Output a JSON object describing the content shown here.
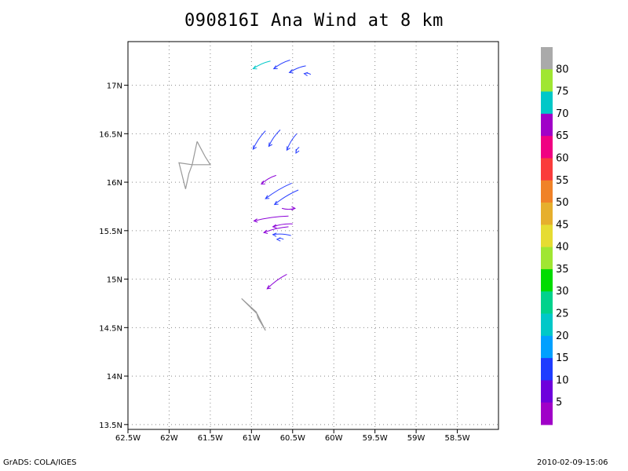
{
  "chart_data": {
    "type": "vector",
    "title": "090816I Ana Wind at 8 km",
    "xlim": [
      -62.5,
      -58
    ],
    "ylim": [
      13.45,
      17.45
    ],
    "x_ticks": [
      {
        "value": -62.5,
        "label": "62.5W"
      },
      {
        "value": -62.0,
        "label": "62W"
      },
      {
        "value": -61.5,
        "label": "61.5W"
      },
      {
        "value": -61.0,
        "label": "61W"
      },
      {
        "value": -60.5,
        "label": "60.5W"
      },
      {
        "value": -60.0,
        "label": "60W"
      },
      {
        "value": -59.5,
        "label": "59.5W"
      },
      {
        "value": -59.0,
        "label": "59W"
      },
      {
        "value": -58.5,
        "label": "58.5W"
      }
    ],
    "y_ticks": [
      {
        "value": 13.5,
        "label": "13.5N"
      },
      {
        "value": 14.0,
        "label": "14N"
      },
      {
        "value": 14.5,
        "label": "14.5N"
      },
      {
        "value": 15.0,
        "label": "15N"
      },
      {
        "value": 15.5,
        "label": "15.5N"
      },
      {
        "value": 16.0,
        "label": "16N"
      },
      {
        "value": 16.5,
        "label": "16.5N"
      },
      {
        "value": 17.0,
        "label": "17N"
      }
    ],
    "grid": true,
    "vectors": [
      {
        "lon": -60.77,
        "lat": 17.25,
        "lon2": -60.98,
        "lat2": 17.17,
        "color": "#00c8c8"
      },
      {
        "lon": -60.53,
        "lat": 17.26,
        "lon2": -60.73,
        "lat2": 17.17,
        "color": "#2a40ff"
      },
      {
        "lon": -60.34,
        "lat": 17.2,
        "lon2": -60.54,
        "lat2": 17.13,
        "color": "#2a40ff"
      },
      {
        "lon": -60.28,
        "lat": 17.11,
        "lon2": -60.36,
        "lat2": 17.12,
        "color": "#2a40ff"
      },
      {
        "lon": -60.83,
        "lat": 16.53,
        "lon2": -60.98,
        "lat2": 16.34,
        "color": "#2a40ff"
      },
      {
        "lon": -60.65,
        "lat": 16.54,
        "lon2": -60.79,
        "lat2": 16.37,
        "color": "#2a40ff"
      },
      {
        "lon": -60.45,
        "lat": 16.5,
        "lon2": -60.57,
        "lat2": 16.33,
        "color": "#2a40ff"
      },
      {
        "lon": -60.42,
        "lat": 16.36,
        "lon2": -60.46,
        "lat2": 16.3,
        "color": "#2a40ff"
      },
      {
        "lon": -60.7,
        "lat": 16.07,
        "lon2": -60.88,
        "lat2": 15.98,
        "color": "#8b00d8"
      },
      {
        "lon": -60.51,
        "lat": 15.99,
        "lon2": -60.83,
        "lat2": 15.83,
        "color": "#2a40ff"
      },
      {
        "lon": -60.43,
        "lat": 15.92,
        "lon2": -60.72,
        "lat2": 15.77,
        "color": "#2a40ff"
      },
      {
        "lon": -60.63,
        "lat": 15.73,
        "lon2": -60.47,
        "lat2": 15.73,
        "color": "#8b00d8"
      },
      {
        "lon": -60.55,
        "lat": 15.65,
        "lon2": -60.97,
        "lat2": 15.6,
        "color": "#8b00d8"
      },
      {
        "lon": -60.5,
        "lat": 15.57,
        "lon2": -60.74,
        "lat2": 15.54,
        "color": "#8b00d8"
      },
      {
        "lon": -60.55,
        "lat": 15.54,
        "lon2": -60.85,
        "lat2": 15.48,
        "color": "#8b00d8"
      },
      {
        "lon": -60.52,
        "lat": 15.45,
        "lon2": -60.74,
        "lat2": 15.46,
        "color": "#2a40ff"
      },
      {
        "lon": -60.61,
        "lat": 15.41,
        "lon2": -60.69,
        "lat2": 15.41,
        "color": "#2a40ff"
      },
      {
        "lon": -60.57,
        "lat": 15.05,
        "lon2": -60.81,
        "lat2": 14.9,
        "color": "#8b00d8"
      }
    ],
    "coastlines": [
      [
        [
          -61.66,
          16.42
        ],
        [
          -61.56,
          16.26
        ],
        [
          -61.5,
          16.18
        ],
        [
          -61.72,
          16.18
        ],
        [
          -61.76,
          16.09
        ],
        [
          -61.8,
          15.93
        ],
        [
          -61.88,
          16.2
        ],
        [
          -61.72,
          16.18
        ],
        [
          -61.66,
          16.42
        ]
      ],
      [
        [
          -61.12,
          14.8
        ],
        [
          -60.94,
          14.66
        ],
        [
          -60.92,
          14.6
        ],
        [
          -60.83,
          14.47
        ],
        [
          -60.93,
          14.64
        ],
        [
          -61.12,
          14.8
        ]
      ]
    ],
    "colorbar": {
      "levels": [
        5,
        10,
        15,
        20,
        25,
        30,
        35,
        40,
        45,
        50,
        55,
        60,
        65,
        70,
        75,
        80
      ],
      "colors": [
        "#a000c8",
        "#6e00dc",
        "#1e3cff",
        "#00a0ff",
        "#00c8c8",
        "#00d28c",
        "#00dc00",
        "#a0e632",
        "#e6dc32",
        "#e6af2d",
        "#f08228",
        "#fa3c3c",
        "#f00082",
        "#a000c8",
        "#00c8c8",
        "#a0e632",
        "#aaaaaa"
      ]
    }
  },
  "footer": {
    "left": "GrADS: COLA/IGES",
    "right": "2010-02-09-15:06"
  }
}
